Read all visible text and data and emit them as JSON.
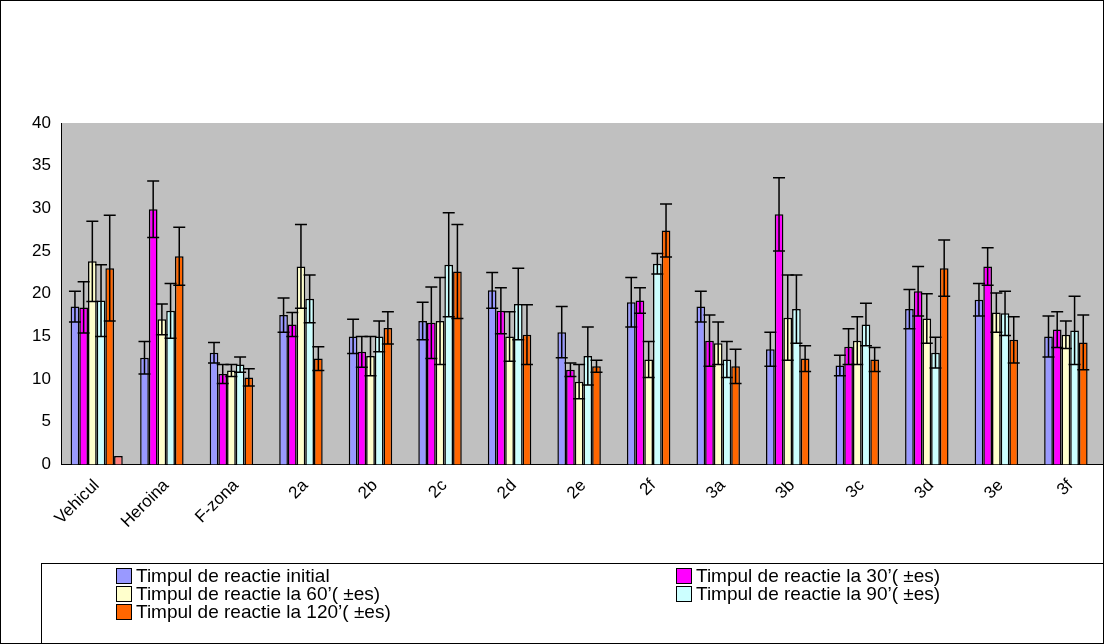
{
  "chart_data": {
    "type": "bar",
    "categories": [
      "Vehicul",
      "Heroina",
      "F-zona",
      "2a",
      "2b",
      "2c",
      "2d",
      "2e",
      "2f",
      "3a",
      "3b",
      "3c",
      "3d",
      "3e",
      "3f"
    ],
    "series": [
      {
        "name": "Timpul de reactie initial",
        "color": "#9999ff",
        "values": [
          18.5,
          12.5,
          13.1,
          17.5,
          15.0,
          16.8,
          20.4,
          15.5,
          19.0,
          18.5,
          13.5,
          11.6,
          18.2,
          19.3,
          15.0
        ],
        "errors": [
          1.8,
          1.9,
          1.2,
          2.0,
          2.0,
          2.2,
          2.1,
          3.0,
          2.9,
          1.8,
          2.0,
          1.2,
          2.3,
          1.9,
          2.4
        ]
      },
      {
        "name": "Timpul de reactie la 30’( ±es)",
        "color": "#ff00ff",
        "values": [
          18.4,
          29.9,
          10.6,
          16.4,
          13.2,
          16.6,
          18.0,
          11.1,
          19.2,
          14.5,
          29.3,
          13.8,
          20.3,
          23.2,
          15.8
        ],
        "errors": [
          3.0,
          3.3,
          1.1,
          1.4,
          1.8,
          4.2,
          2.7,
          0.8,
          1.5,
          3.0,
          4.3,
          2.1,
          2.9,
          2.2,
          2.1
        ]
      },
      {
        "name": "Timpul de reactie la 60’( ±es)",
        "color": "#ffffcc",
        "values": [
          23.8,
          17.0,
          11.0,
          23.2,
          12.7,
          16.8,
          15.0,
          9.7,
          12.3,
          14.2,
          17.2,
          14.5,
          17.1,
          17.8,
          15.2
        ],
        "errors": [
          4.7,
          1.8,
          0.7,
          4.9,
          2.3,
          5.1,
          2.9,
          2.0,
          2.1,
          2.5,
          5.0,
          2.8,
          2.9,
          2.3,
          1.6
        ]
      },
      {
        "name": "Timpul de reactie la 90’( ±es)",
        "color": "#ccffff",
        "values": [
          19.2,
          18.0,
          11.7,
          19.4,
          15.0,
          23.4,
          18.8,
          12.7,
          23.5,
          12.3,
          18.2,
          16.4,
          13.1,
          17.7,
          15.7
        ],
        "errors": [
          4.2,
          3.2,
          0.9,
          2.8,
          1.8,
          6.1,
          4.2,
          3.4,
          1.2,
          2.1,
          4.0,
          2.5,
          1.8,
          2.6,
          4.0
        ]
      },
      {
        "name": "Timpul de reactie la 120’( ±es)",
        "color": "#ff6600",
        "values": [
          23.0,
          24.4,
          10.2,
          12.4,
          16.0,
          22.6,
          15.2,
          11.5,
          27.4,
          11.5,
          12.4,
          12.3,
          23.0,
          14.6,
          14.3
        ],
        "errors": [
          6.2,
          3.4,
          1.0,
          1.4,
          1.9,
          5.5,
          3.5,
          0.7,
          3.1,
          2.0,
          1.5,
          1.4,
          3.3,
          2.7,
          3.2
        ]
      },
      {
        "color": "#ff8080",
        "values": [
          1.0,
          null,
          null,
          null,
          null,
          null,
          null,
          null,
          null,
          null,
          null,
          null,
          null,
          null,
          null
        ]
      }
    ],
    "ylim": [
      0,
      40
    ],
    "yticks": [
      0,
      5,
      10,
      15,
      20,
      25,
      30,
      35,
      40
    ],
    "grid": false,
    "legend": "bottom"
  }
}
